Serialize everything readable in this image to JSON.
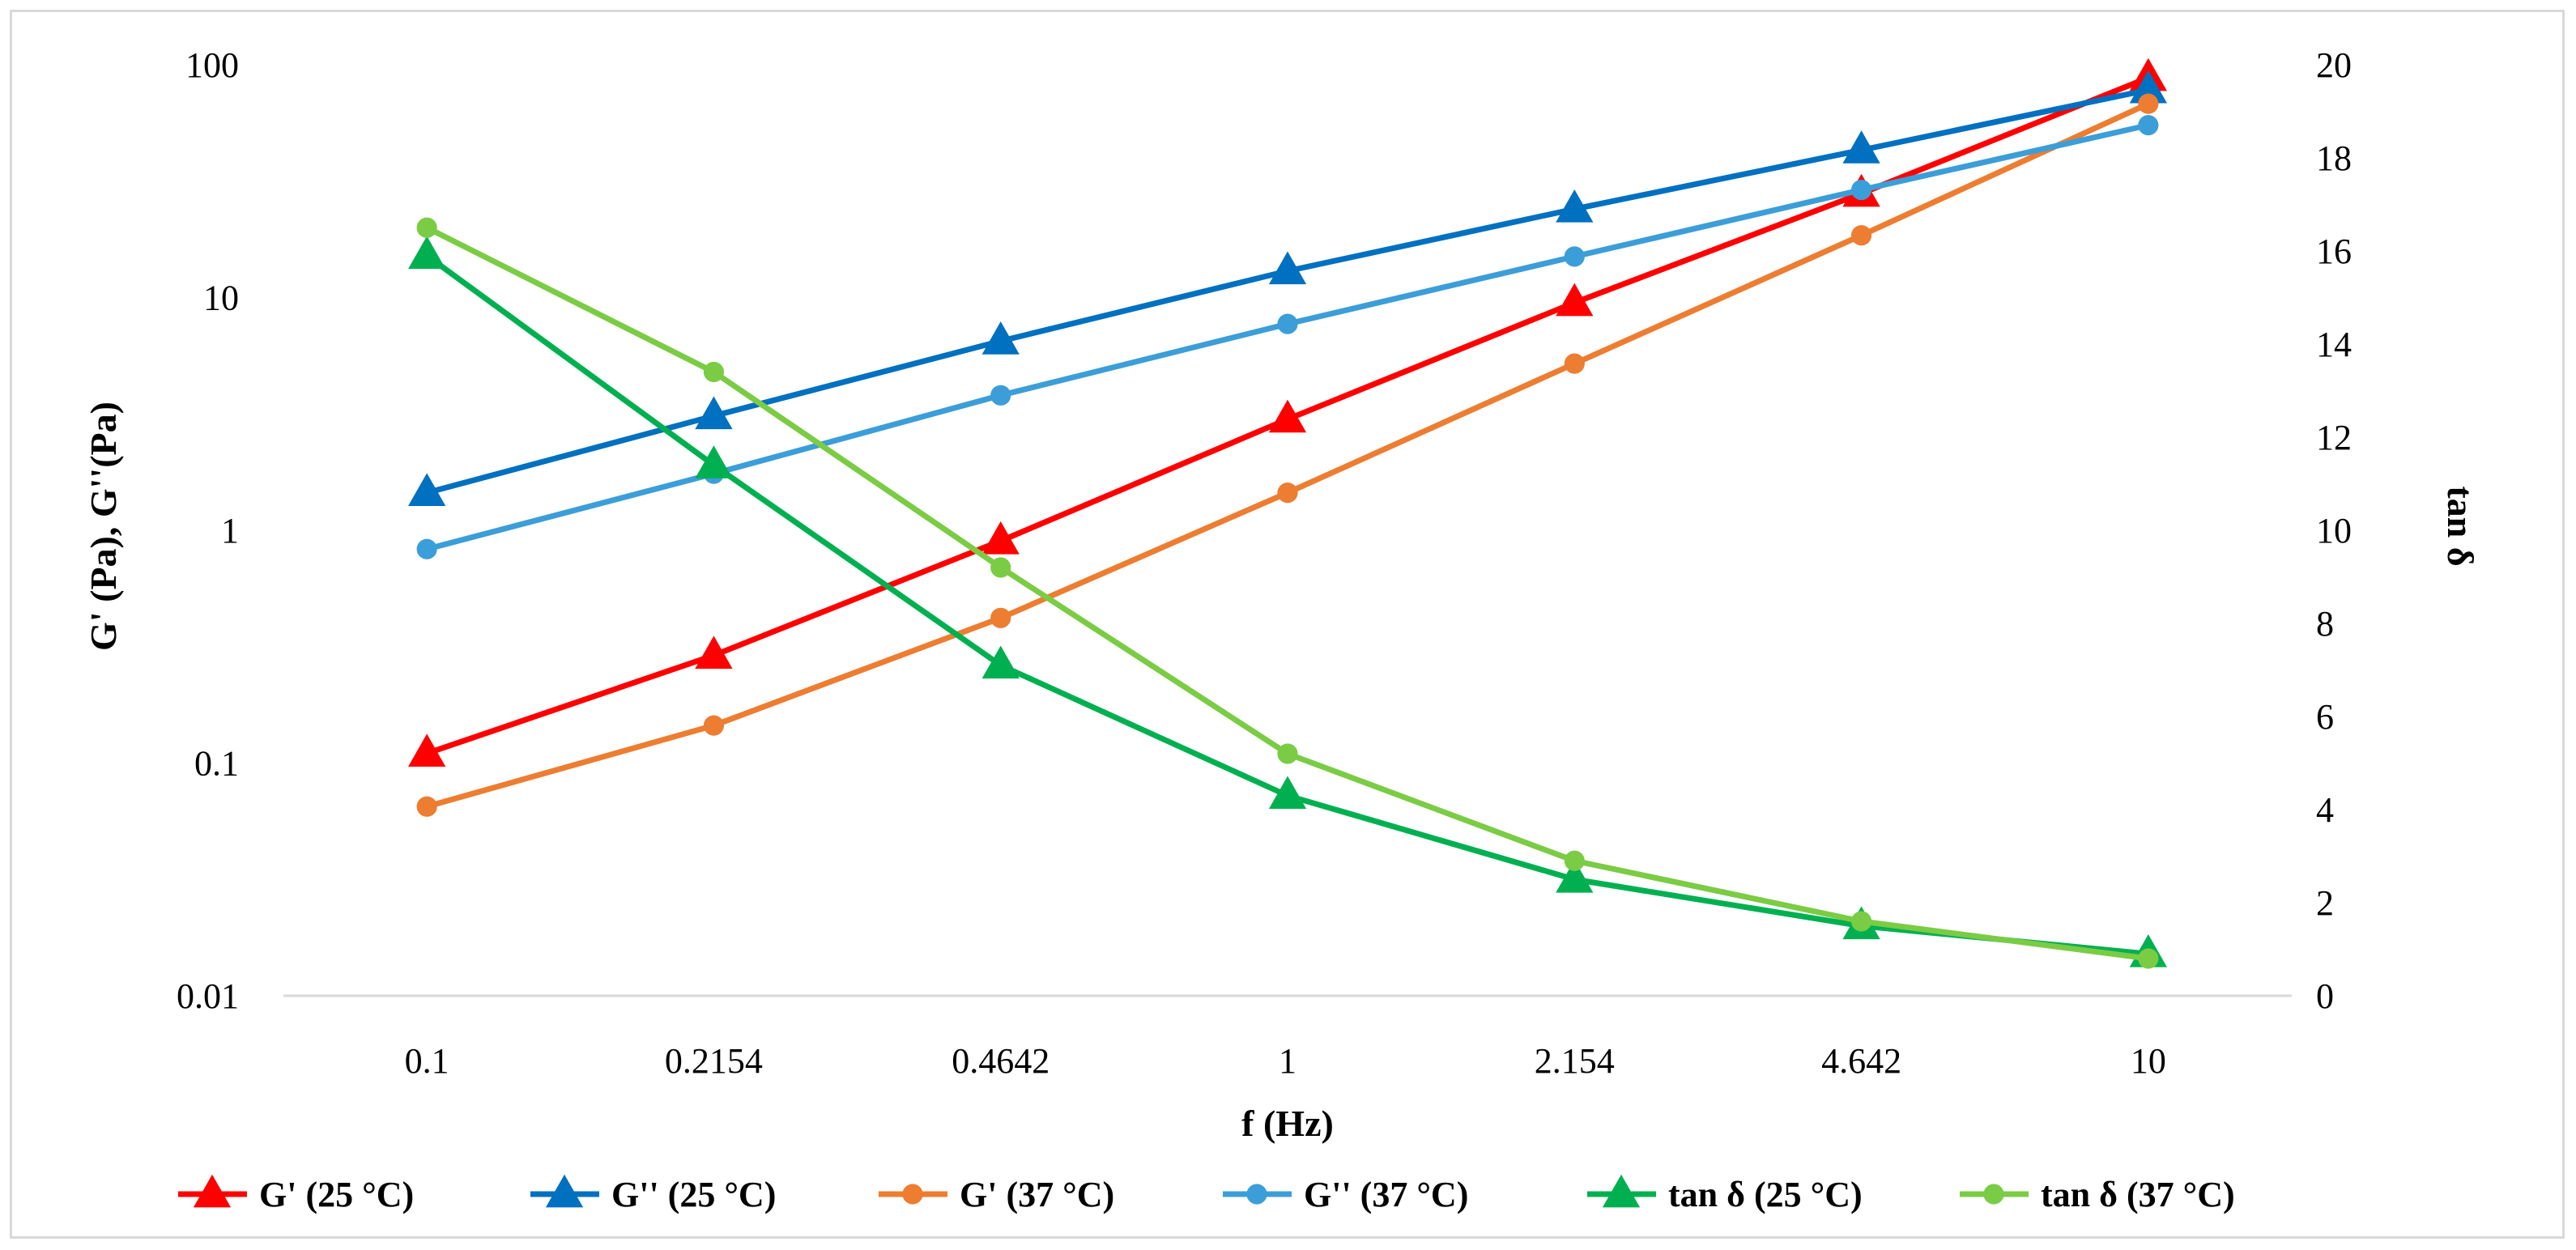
{
  "chart_data": {
    "type": "line",
    "title": "",
    "xlabel": "f (Hz)",
    "ylabel_left": "G' (Pa), G''(Pa)",
    "ylabel_right": "tan δ",
    "categories": [
      "0.1",
      "0.2154",
      "0.4642",
      "1",
      "2.154",
      "4.642",
      "10"
    ],
    "y_left_scale": "log",
    "y_left_range": [
      0.01,
      100
    ],
    "y_left_ticks": [
      "0.01",
      "0.1",
      "1",
      "10",
      "100"
    ],
    "y_right_range": [
      0,
      20
    ],
    "y_right_ticks": [
      "0",
      "2",
      "4",
      "6",
      "8",
      "10",
      "12",
      "14",
      "16",
      "18",
      "20"
    ],
    "grid": false,
    "legend_position": "bottom",
    "series": [
      {
        "name": "G' (25 °C)",
        "axis": "left",
        "color": "#FF0000",
        "marker": "triangle",
        "values": [
          0.11,
          0.29,
          0.9,
          3.0,
          9.5,
          28,
          88
        ]
      },
      {
        "name": "G'' (25 °C)",
        "axis": "left",
        "color": "#0070C0",
        "marker": "triangle",
        "values": [
          1.45,
          3.1,
          6.5,
          13,
          24,
          43,
          78
        ]
      },
      {
        "name": "G' (37 °C)",
        "axis": "left",
        "color": "#ED7D31",
        "marker": "circle",
        "values": [
          0.065,
          0.145,
          0.42,
          1.45,
          5.2,
          18.5,
          68
        ]
      },
      {
        "name": "G'' (37 °C)",
        "axis": "left",
        "color": "#3C9ED8",
        "marker": "circle",
        "values": [
          0.83,
          1.75,
          3.8,
          7.7,
          15,
          29,
          55
        ]
      },
      {
        "name": "tan δ (25 °C)",
        "axis": "right",
        "color": "#00B050",
        "marker": "triangle",
        "values": [
          15.9,
          11.4,
          7.1,
          4.3,
          2.5,
          1.5,
          0.9
        ]
      },
      {
        "name": "tan δ (37 °C)",
        "axis": "right",
        "color": "#7ACC44",
        "marker": "circle",
        "values": [
          16.5,
          13.4,
          9.2,
          5.2,
          2.9,
          1.6,
          0.8
        ]
      }
    ]
  }
}
